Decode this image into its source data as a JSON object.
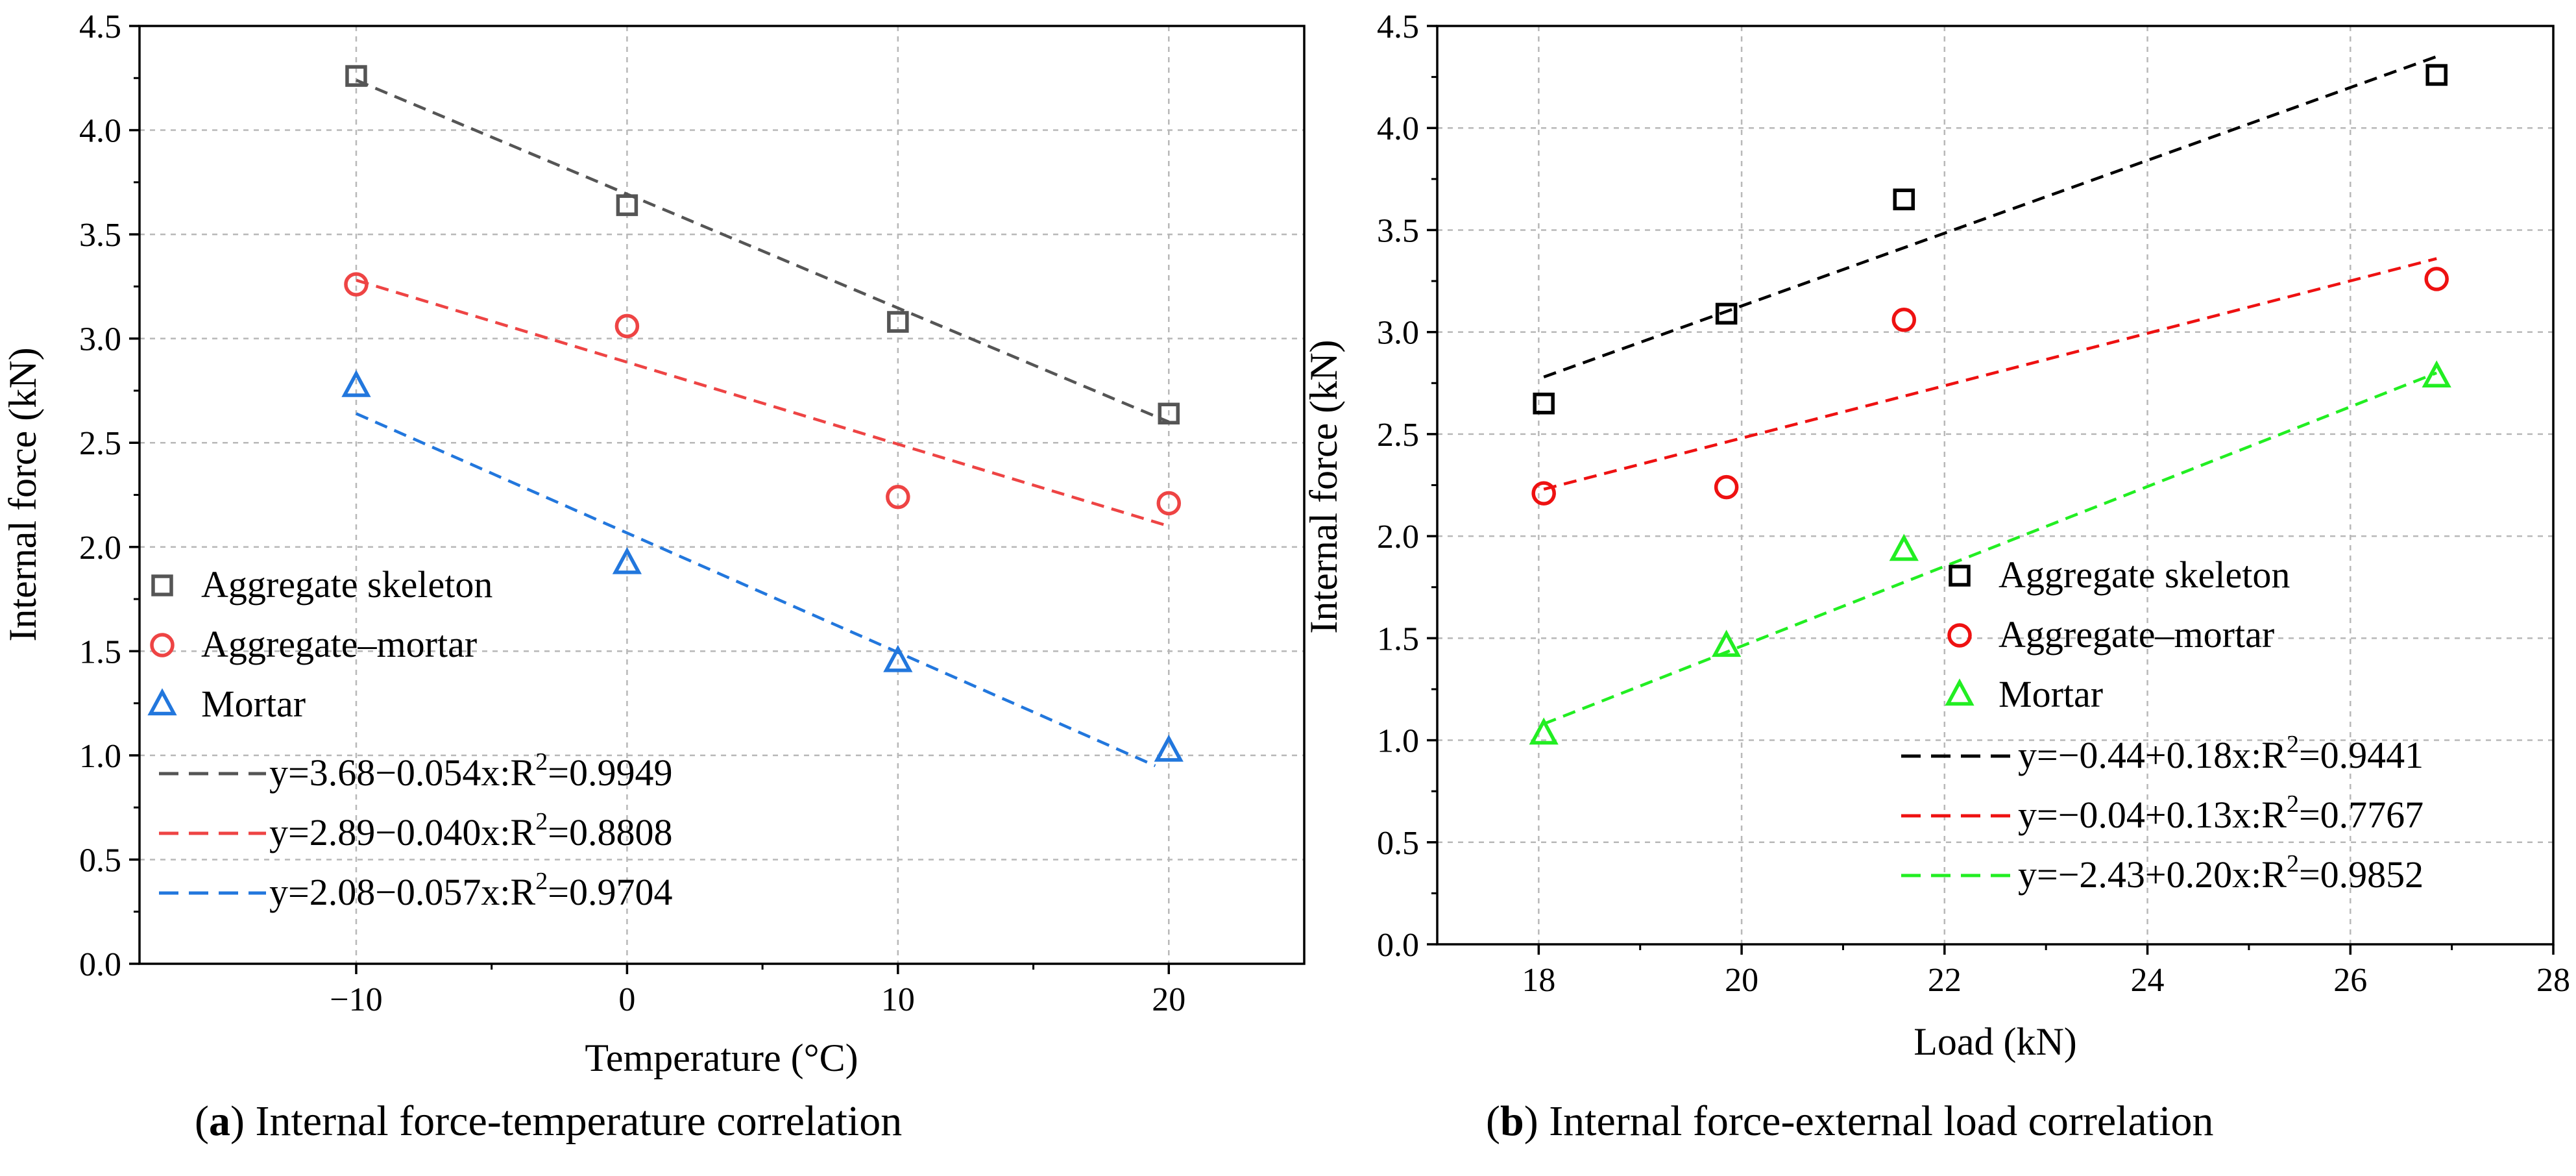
{
  "chart_data": [
    {
      "type": "scatter",
      "id": "a",
      "xlabel": "Temperature (°C)",
      "ylabel": "Internal force (kN)",
      "xlim": [
        -18,
        25
      ],
      "ylim": [
        0,
        4.5
      ],
      "xticks": [
        -10,
        0,
        10,
        20
      ],
      "xtick_labels": [
        "−10",
        "0",
        "10",
        "20"
      ],
      "yticks": [
        0,
        0.5,
        1.0,
        1.5,
        2.0,
        2.5,
        3.0,
        3.5,
        4.0,
        4.5
      ],
      "ytick_labels": [
        "0.0",
        "0.5",
        "1.0",
        "1.5",
        "2.0",
        "2.5",
        "3.0",
        "3.5",
        "4.0",
        "4.5"
      ],
      "grid": true,
      "legend_position": "bottom-left",
      "series": [
        {
          "name": "Aggregate skeleton",
          "marker": "square",
          "color": "#555555",
          "x": [
            -10,
            0,
            10,
            20
          ],
          "y": [
            4.26,
            3.64,
            3.08,
            2.64
          ],
          "fit_label": "y=3.68−0.054x:R",
          "fit_r2": "=0.9949",
          "fit_line": {
            "x": [
              -10,
              20
            ],
            "y": [
              4.24,
              2.6
            ]
          }
        },
        {
          "name": "Aggregate–mortar",
          "marker": "circle",
          "color": "#ee4444",
          "x": [
            -10,
            0,
            10,
            20
          ],
          "y": [
            3.26,
            3.06,
            2.24,
            2.21
          ],
          "fit_label": "y=2.89−0.040x:R",
          "fit_r2": "=0.8808",
          "fit_line": {
            "x": [
              -10,
              20
            ],
            "y": [
              3.28,
              2.1
            ]
          }
        },
        {
          "name": "Mortar",
          "marker": "triangle",
          "color": "#2277dd",
          "x": [
            -10,
            0,
            10,
            20
          ],
          "y": [
            2.77,
            1.92,
            1.45,
            1.02
          ],
          "fit_label": "y=2.08−0.057x:R",
          "fit_r2": "=0.9704",
          "fit_line": {
            "x": [
              -10,
              19.5
            ],
            "y": [
              2.64,
              0.95
            ]
          }
        }
      ],
      "caption_letter": "a",
      "caption_text": "Internal force-temperature correlation"
    },
    {
      "type": "scatter",
      "id": "b",
      "xlabel": "Load (kN)",
      "ylabel": "Internal force (kN)",
      "xlim": [
        17,
        28
      ],
      "ylim": [
        0,
        4.5
      ],
      "xticks": [
        18,
        20,
        22,
        24,
        26,
        28
      ],
      "xtick_labels": [
        "18",
        "20",
        "22",
        "24",
        "26",
        "28"
      ],
      "yticks": [
        0,
        0.5,
        1.0,
        1.5,
        2.0,
        2.5,
        3.0,
        3.5,
        4.0,
        4.5
      ],
      "ytick_labels": [
        "0.0",
        "0.5",
        "1.0",
        "1.5",
        "2.0",
        "2.5",
        "3.0",
        "3.5",
        "4.0",
        "4.5"
      ],
      "grid": true,
      "legend_position": "bottom-right",
      "series": [
        {
          "name": "Aggregate skeleton",
          "marker": "square",
          "color": "#000000",
          "x": [
            18.05,
            19.85,
            21.6,
            26.85
          ],
          "y": [
            2.65,
            3.09,
            3.65,
            4.26
          ],
          "fit_label": "y=−0.44+0.18x:R",
          "fit_r2": "=0.9441",
          "fit_line": {
            "x": [
              18.05,
              26.85
            ],
            "y": [
              2.78,
              4.35
            ]
          }
        },
        {
          "name": "Aggregate–mortar",
          "marker": "circle",
          "color": "#ee1111",
          "x": [
            18.05,
            19.85,
            21.6,
            26.85
          ],
          "y": [
            2.21,
            2.24,
            3.06,
            3.26
          ],
          "fit_label": "y=−0.04+0.13x:R",
          "fit_r2": "=0.7767",
          "fit_line": {
            "x": [
              18.05,
              26.85
            ],
            "y": [
              2.23,
              3.36
            ]
          }
        },
        {
          "name": "Mortar",
          "marker": "triangle",
          "color": "#22ee22",
          "x": [
            18.05,
            19.85,
            21.6,
            26.85
          ],
          "y": [
            1.03,
            1.46,
            1.93,
            2.78
          ],
          "fit_label": "y=−2.43+0.20x:R",
          "fit_r2": "=0.9852",
          "fit_line": {
            "x": [
              18.05,
              26.85
            ],
            "y": [
              1.08,
              2.8
            ]
          }
        }
      ],
      "caption_letter": "b",
      "caption_text": "Internal force-external load correlation"
    }
  ],
  "superscript": "2"
}
